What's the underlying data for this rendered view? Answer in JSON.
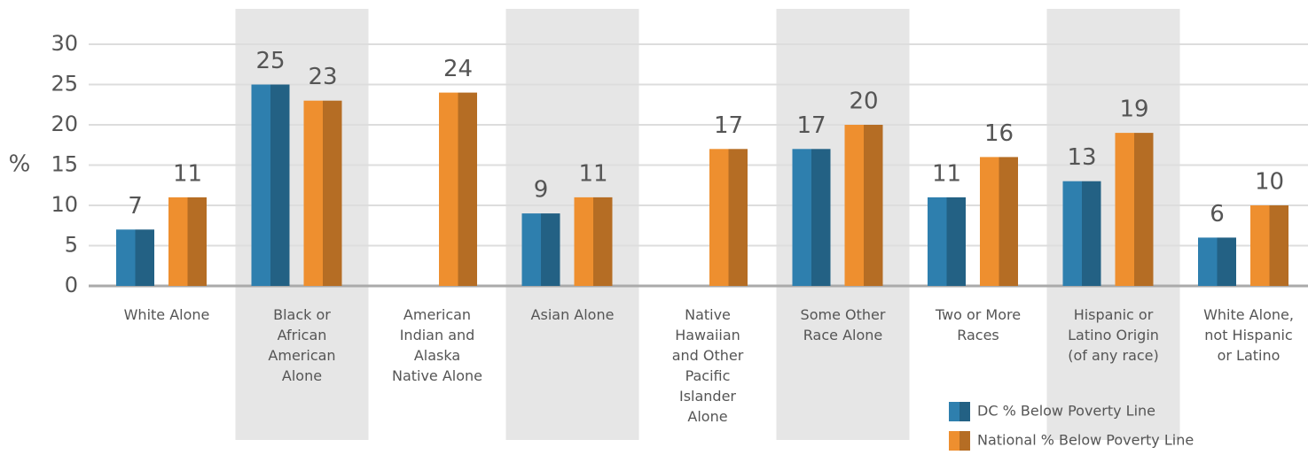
{
  "chart_data": {
    "type": "bar",
    "ylabel": "%",
    "categories": [
      "White Alone",
      "Black or African American Alone",
      "American Indian and Alaska Native Alone",
      "Asian Alone",
      "Native Hawaiian and Other Pacific Islander Alone",
      "Some Other Race Alone",
      "Two or More Races",
      "Hispanic or Latino Origin (of any race)",
      "White Alone, not Hispanic or Latino"
    ],
    "series": [
      {
        "name": "DC % Below Poverty Line",
        "color": "#2e7fae",
        "values": [
          7,
          25,
          null,
          9,
          null,
          17,
          11,
          13,
          6
        ]
      },
      {
        "name": "National % Below Poverty Line",
        "color": "#ee8f2f",
        "values": [
          11,
          23,
          24,
          11,
          17,
          20,
          16,
          19,
          10
        ]
      }
    ],
    "ylim": [
      0,
      30
    ],
    "yticks": [
      0,
      5,
      10,
      15,
      20,
      25,
      30
    ],
    "grid": true,
    "legend": "lower right"
  }
}
